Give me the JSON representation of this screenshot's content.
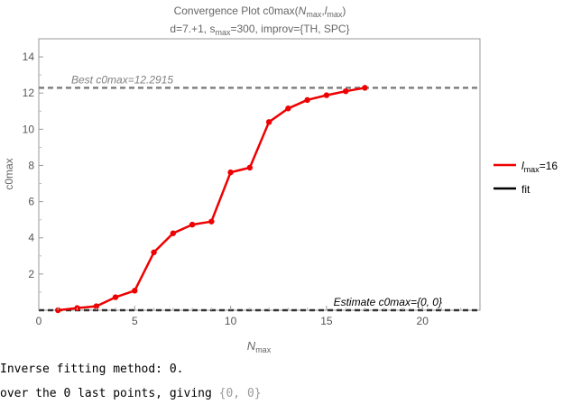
{
  "chart_data": {
    "type": "line",
    "title": {
      "line1": {
        "prefix": "Convergence Plot c0max(",
        "n_base": "N",
        "n_sub": "max",
        "sep": ",",
        "l_base": "l",
        "l_sub": "max",
        "suffix": ")"
      },
      "line2": {
        "prefix": "d=7.+1, ",
        "s_base": "s",
        "s_sub": "max",
        "suffix": "=300, improv={TH, SPC}"
      }
    },
    "xlabel": {
      "base": "N",
      "sub": "max"
    },
    "ylabel": "c0max",
    "xlim": [
      0,
      23
    ],
    "ylim": [
      0,
      15
    ],
    "xticks": [
      0,
      5,
      10,
      15,
      20
    ],
    "yticks": [
      2,
      4,
      6,
      8,
      10,
      12,
      14
    ],
    "grid": false,
    "series": [
      {
        "color": "#ee0000",
        "x": [
          1,
          2,
          3,
          4,
          5,
          6,
          7,
          8,
          9,
          10,
          11,
          12,
          13,
          14,
          15,
          16,
          17
        ],
        "y": [
          0.0,
          0.12,
          0.22,
          0.72,
          1.08,
          3.2,
          4.25,
          4.73,
          4.9,
          7.62,
          7.88,
          10.4,
          11.15,
          11.62,
          11.88,
          12.1,
          12.29
        ]
      }
    ],
    "reference_lines": [
      {
        "y": 12.2915,
        "color": "#808080",
        "label": "Best c0max=12.2915"
      },
      {
        "y": 0,
        "color": "#333333",
        "label": "Estimate c0max={0, 0}"
      }
    ],
    "legend": {
      "placement": "right",
      "entries": [
        {
          "base": "l",
          "sub": "max",
          "suffix": "=16",
          "color": "#ee0000"
        },
        {
          "text": "fit",
          "color": "#000000"
        }
      ]
    }
  },
  "output": {
    "line1": "Inverse fitting method: 0.",
    "line2_prefix": "over the 0 last points, giving ",
    "line2_tuple": "{0, 0}"
  }
}
